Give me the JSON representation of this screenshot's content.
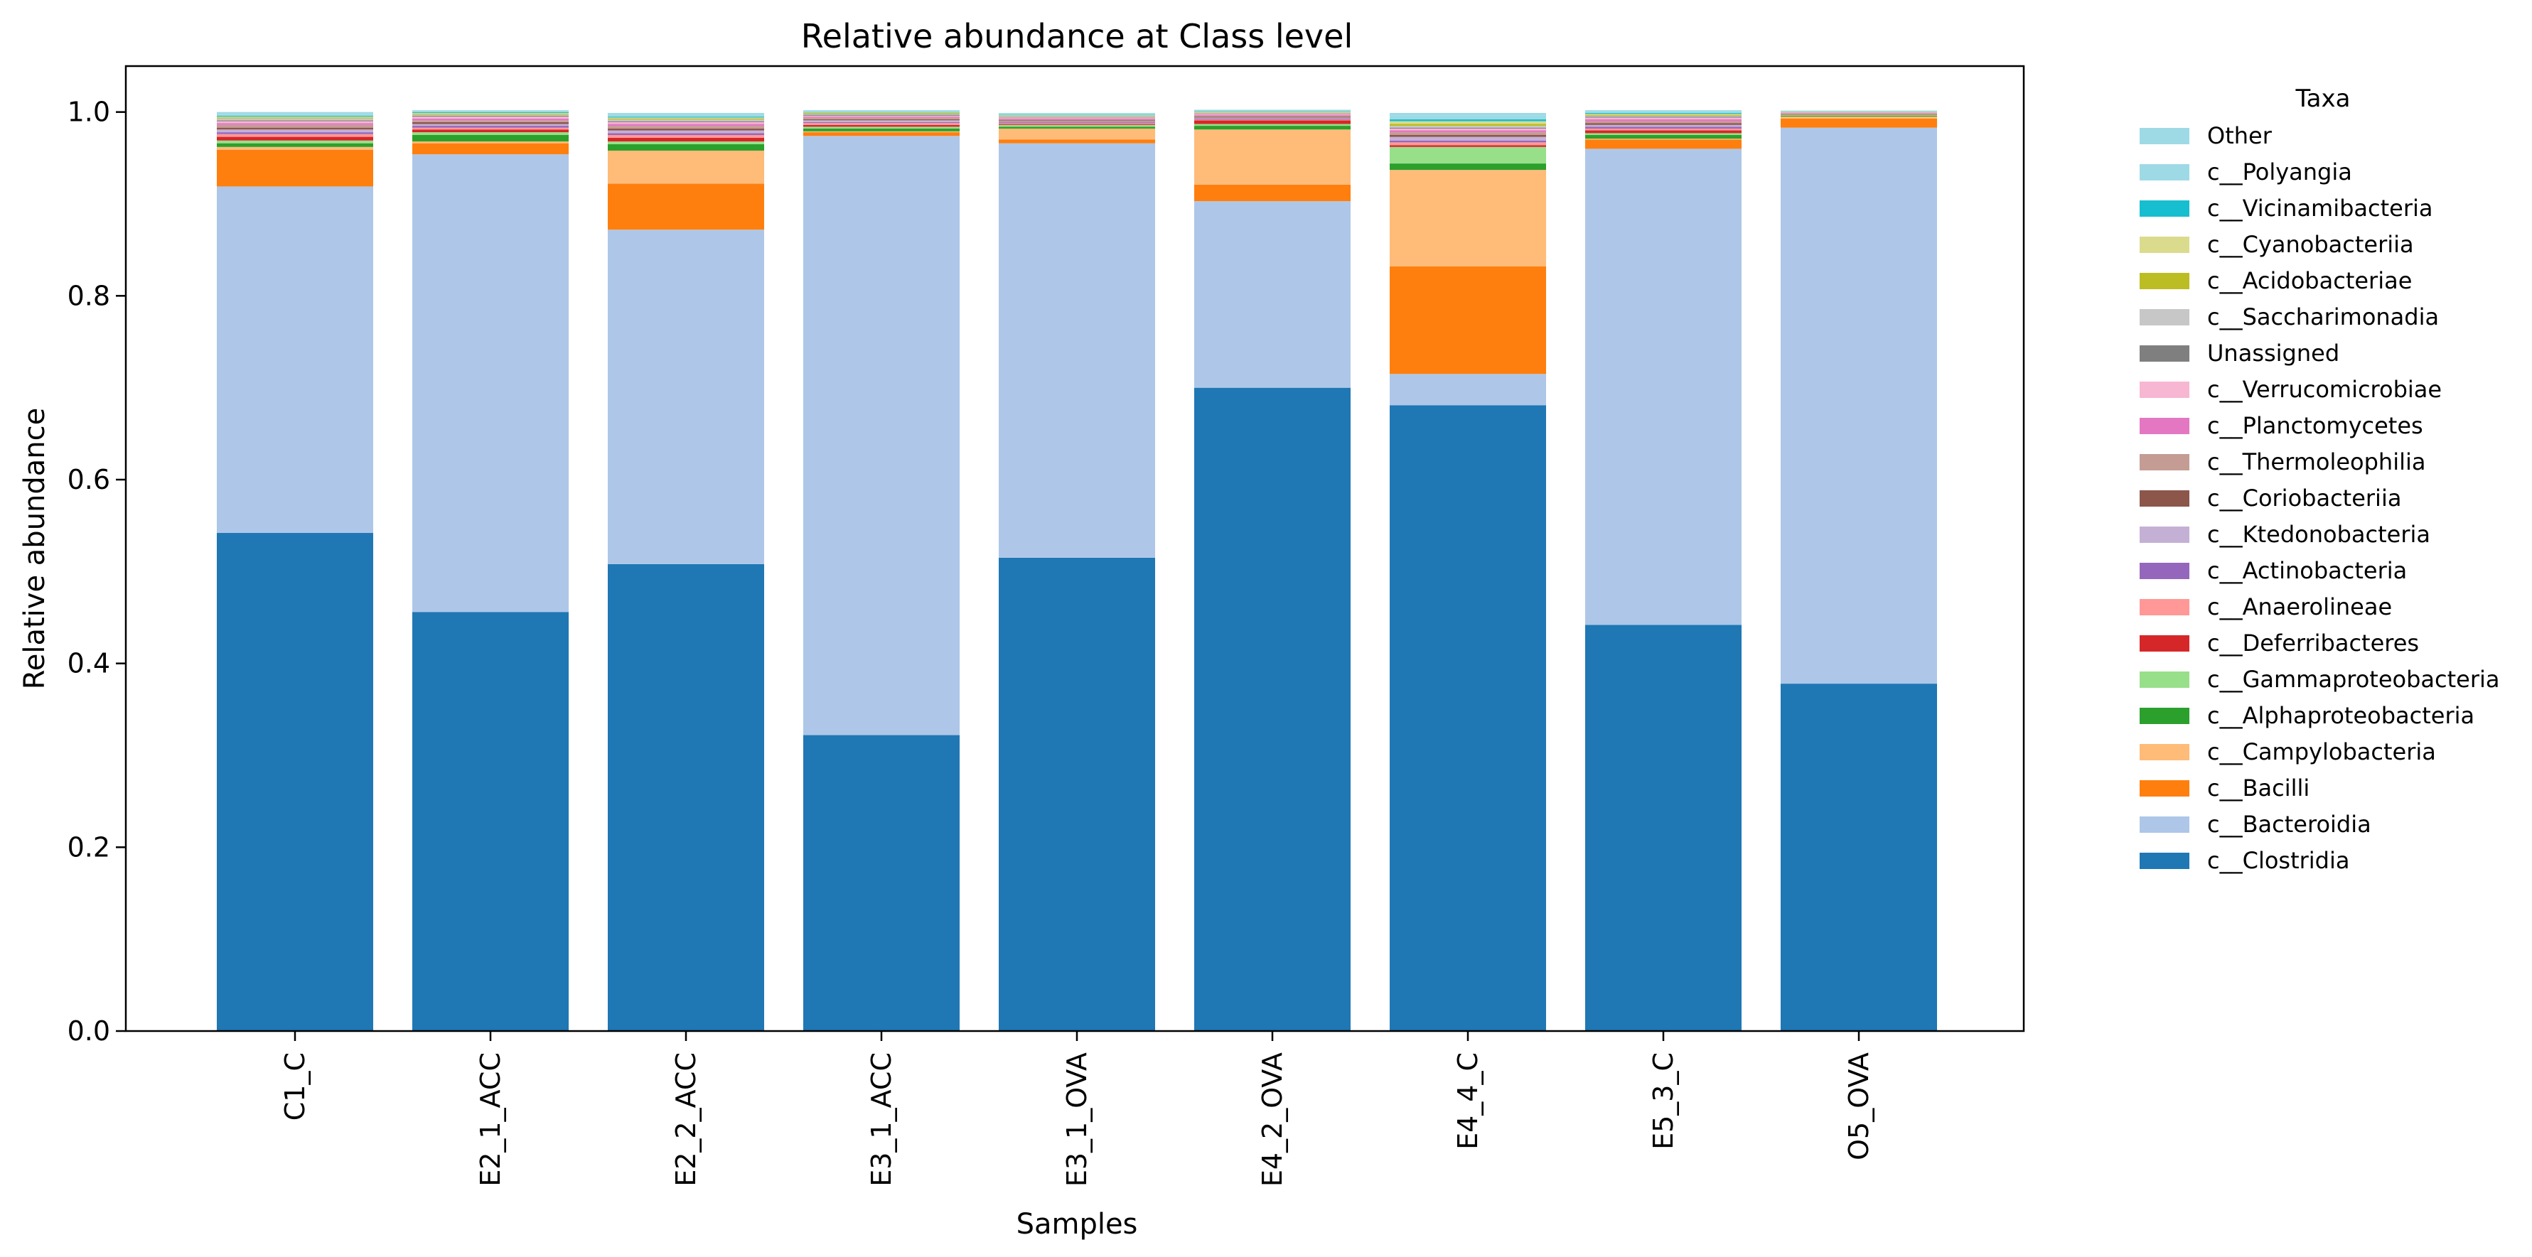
{
  "chart_data": {
    "type": "bar",
    "stacked": true,
    "title": "Relative abundance at Class level",
    "xlabel": "Samples",
    "ylabel": "Relative abundance",
    "ylim": [
      0,
      1.05
    ],
    "yticks": [
      "0.0",
      "0.2",
      "0.4",
      "0.6",
      "0.8",
      "1.0"
    ],
    "categories": [
      "C1_C",
      "E2_1_ACC",
      "E2_2_ACC",
      "E3_1_ACC",
      "E3_1_OVA",
      "E4_2_OVA",
      "E4_4_C",
      "E5_3_C",
      "O5_OVA"
    ],
    "legend": {
      "title": "Taxa",
      "position": "outside-right"
    },
    "grid": false,
    "series": [
      {
        "name": "c__Clostridia",
        "color": "#1f77b4",
        "values": [
          0.542,
          0.456,
          0.508,
          0.322,
          0.515,
          0.7,
          0.681,
          0.442,
          0.378
        ]
      },
      {
        "name": "c__Bacteroidia",
        "color": "#aec7e8",
        "values": [
          0.377,
          0.498,
          0.364,
          0.652,
          0.451,
          0.203,
          0.034,
          0.518,
          0.605
        ]
      },
      {
        "name": "c__Bacilli",
        "color": "#ff7f0e",
        "values": [
          0.04,
          0.012,
          0.05,
          0.004,
          0.004,
          0.018,
          0.117,
          0.01,
          0.01
        ]
      },
      {
        "name": "c__Campylobacteria",
        "color": "#ffbb78",
        "values": [
          0.003,
          0.002,
          0.036,
          0.001,
          0.012,
          0.06,
          0.105,
          0.001,
          0.002
        ]
      },
      {
        "name": "c__Alphaproteobacteria",
        "color": "#2ca02c",
        "values": [
          0.004,
          0.007,
          0.007,
          0.003,
          0.002,
          0.004,
          0.007,
          0.004,
          0.001
        ]
      },
      {
        "name": "c__Gammaproteobacteria",
        "color": "#98df8a",
        "values": [
          0.003,
          0.003,
          0.003,
          0.002,
          0.002,
          0.002,
          0.018,
          0.002,
          0.001
        ]
      },
      {
        "name": "c__Deferribacteres",
        "color": "#d62728",
        "values": [
          0.004,
          0.003,
          0.004,
          0.002,
          0.001,
          0.004,
          0.002,
          0.003,
          0.0005
        ]
      },
      {
        "name": "c__Anaerolineae",
        "color": "#ff9896",
        "values": [
          0.003,
          0.002,
          0.003,
          0.002,
          0.001,
          0.001,
          0.003,
          0.002,
          0.0005
        ]
      },
      {
        "name": "c__Actinobacteria",
        "color": "#9467bd",
        "values": [
          0.002,
          0.002,
          0.002,
          0.001,
          0.001,
          0.001,
          0.002,
          0.002,
          0.0003
        ]
      },
      {
        "name": "c__Ktedonobacteria",
        "color": "#c5b0d5",
        "values": [
          0.003,
          0.002,
          0.003,
          0.002,
          0.001,
          0.001,
          0.004,
          0.002,
          0.0003
        ]
      },
      {
        "name": "c__Coriobacteriia",
        "color": "#8c564b",
        "values": [
          0.002,
          0.002,
          0.002,
          0.001,
          0.001,
          0.001,
          0.002,
          0.002,
          0.0003
        ]
      },
      {
        "name": "c__Thermoleophilia",
        "color": "#c49c94",
        "values": [
          0.003,
          0.002,
          0.003,
          0.002,
          0.001,
          0.001,
          0.003,
          0.002,
          0.0003
        ]
      },
      {
        "name": "c__Planctomycetes",
        "color": "#e377c2",
        "values": [
          0.002,
          0.002,
          0.002,
          0.001,
          0.001,
          0.001,
          0.002,
          0.002,
          0.0003
        ]
      },
      {
        "name": "c__Verrucomicrobiae",
        "color": "#f7b6d2",
        "values": [
          0.002,
          0.002,
          0.002,
          0.001,
          0.001,
          0.001,
          0.002,
          0.002,
          0.0003
        ]
      },
      {
        "name": "Unassigned",
        "color": "#7f7f7f",
        "values": [
          0.001,
          0.001,
          0.001,
          0.001,
          0.0005,
          0.0005,
          0.001,
          0.001,
          0.0002
        ]
      },
      {
        "name": "c__Saccharimonadia",
        "color": "#c7c7c7",
        "values": [
          0.002,
          0.001,
          0.002,
          0.001,
          0.001,
          0.001,
          0.002,
          0.001,
          0.0002
        ]
      },
      {
        "name": "c__Acidobacteriae",
        "color": "#bcbd22",
        "values": [
          0.001,
          0.001,
          0.001,
          0.001,
          0.0005,
          0.0005,
          0.002,
          0.001,
          0.0002
        ]
      },
      {
        "name": "c__Cyanobacteriia",
        "color": "#dbdb8d",
        "values": [
          0.001,
          0.001,
          0.001,
          0.0005,
          0.0005,
          0.0005,
          0.003,
          0.001,
          0.0002
        ]
      },
      {
        "name": "c__Vicinamibacteria",
        "color": "#17becf",
        "values": [
          0.001,
          0.001,
          0.001,
          0.0005,
          0.0005,
          0.0005,
          0.002,
          0.001,
          0.0002
        ]
      },
      {
        "name": "c__Polyangia",
        "color": "#9edae5",
        "values": [
          0.002,
          0.001,
          0.002,
          0.001,
          0.001,
          0.001,
          0.004,
          0.002,
          0.0003
        ]
      },
      {
        "name": "Other",
        "color": "#9edae5",
        "values": [
          0.002,
          0.001,
          0.002,
          0.001,
          0.001,
          0.0005,
          0.003,
          0.001,
          0.0005
        ]
      }
    ]
  }
}
